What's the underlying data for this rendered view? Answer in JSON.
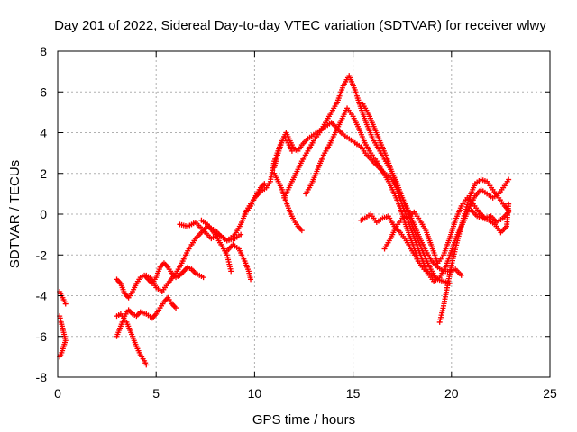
{
  "chart_data": {
    "type": "scatter",
    "title": "Day 201 of 2022, Sidereal Day-to-day VTEC variation (SDTVAR) for receiver wlwy",
    "xlabel": "GPS time / hours",
    "ylabel": "SDTVAR / TECUs",
    "xlim": [
      0,
      25
    ],
    "ylim": [
      -8,
      8
    ],
    "xticks": [
      0,
      5,
      10,
      15,
      20,
      25
    ],
    "yticks": [
      -8,
      -6,
      -4,
      -2,
      0,
      2,
      4,
      6,
      8
    ],
    "grid": true,
    "marker": "plus",
    "color": "#ff0000",
    "series": [
      {
        "x": [
          0.1,
          0.2,
          0.3,
          0.4
        ],
        "y": [
          -3.8,
          -4.0,
          -4.2,
          -4.4
        ]
      },
      {
        "x": [
          0.1,
          0.2,
          0.3,
          0.4,
          0.3,
          0.2,
          0.1
        ],
        "y": [
          -5.0,
          -5.4,
          -5.8,
          -6.2,
          -6.5,
          -6.8,
          -7.0
        ]
      },
      {
        "x": [
          3.0,
          3.2,
          3.5,
          3.8,
          4.0,
          4.2,
          4.4,
          4.5
        ],
        "y": [
          -5.0,
          -4.9,
          -5.3,
          -6.0,
          -6.5,
          -6.9,
          -7.2,
          -7.4
        ]
      },
      {
        "x": [
          3.0,
          3.2,
          3.4,
          3.6,
          3.8,
          4.0,
          4.2,
          4.5,
          4.8,
          5.0,
          5.2,
          5.4,
          5.6,
          5.8,
          6.0
        ],
        "y": [
          -6.0,
          -5.5,
          -5.0,
          -4.7,
          -4.9,
          -5.0,
          -4.8,
          -4.9,
          -5.1,
          -4.9,
          -4.6,
          -4.3,
          -4.1,
          -4.4,
          -4.6
        ]
      },
      {
        "x": [
          3.0,
          3.2,
          3.4,
          3.6,
          3.8,
          4.0,
          4.2,
          4.4,
          4.6,
          4.8,
          5.0,
          5.2,
          5.4,
          5.6,
          5.8,
          6.0,
          6.2,
          6.4,
          6.6,
          6.8,
          7.0,
          7.2,
          7.4
        ],
        "y": [
          -3.2,
          -3.4,
          -3.9,
          -4.1,
          -3.8,
          -3.4,
          -3.1,
          -3.0,
          -3.2,
          -3.4,
          -3.1,
          -2.6,
          -2.4,
          -2.6,
          -2.9,
          -3.1,
          -3.0,
          -2.8,
          -2.6,
          -2.7,
          -2.9,
          -3.0,
          -3.1
        ]
      },
      {
        "x": [
          4.5,
          4.8,
          5.0,
          5.3,
          5.6,
          6.0,
          6.3,
          6.6,
          7.0,
          7.3,
          7.6,
          8.0,
          8.3,
          8.6,
          9.0,
          9.3,
          9.6,
          10.0,
          10.3,
          10.5
        ],
        "y": [
          -3.0,
          -3.2,
          -3.6,
          -3.8,
          -3.4,
          -2.9,
          -2.4,
          -1.8,
          -1.2,
          -0.9,
          -0.6,
          -0.8,
          -1.1,
          -1.3,
          -1.0,
          -0.5,
          0.2,
          0.8,
          1.3,
          1.5
        ]
      },
      {
        "x": [
          6.2,
          6.6,
          7.0,
          7.4,
          7.8,
          8.2,
          8.6,
          9.0,
          9.3
        ],
        "y": [
          -0.5,
          -0.6,
          -0.4,
          -0.8,
          -1.2,
          -1.0,
          -1.3,
          -1.2,
          -1.0
        ]
      },
      {
        "x": [
          7.3,
          7.6,
          8.0,
          8.3,
          8.6,
          8.8
        ],
        "y": [
          -0.3,
          -0.5,
          -1.0,
          -1.5,
          -2.0,
          -2.8
        ]
      },
      {
        "x": [
          8.6,
          8.9,
          9.2,
          9.5,
          9.7,
          9.8
        ],
        "y": [
          -1.8,
          -1.5,
          -1.7,
          -2.3,
          -2.8,
          -3.2
        ]
      },
      {
        "x": [
          9.5,
          9.8,
          10.0,
          10.3,
          10.6,
          10.8,
          11.0,
          11.3,
          11.5,
          11.7,
          11.9
        ],
        "y": [
          0.0,
          0.4,
          0.8,
          1.1,
          1.3,
          1.6,
          2.6,
          3.4,
          3.8,
          3.5,
          3.1
        ]
      },
      {
        "x": [
          11.0,
          11.2,
          11.4,
          11.6,
          11.8,
          12.0,
          12.2,
          12.4
        ],
        "y": [
          2.0,
          1.6,
          1.2,
          0.6,
          0.1,
          -0.3,
          -0.6,
          -0.8
        ]
      },
      {
        "x": [
          11.0,
          11.2,
          11.4,
          11.6,
          11.8,
          12.0,
          12.2,
          12.4,
          12.7,
          13.0,
          13.3,
          13.6,
          13.9,
          14.2,
          14.5,
          14.8,
          15.1,
          15.4,
          15.7,
          16.0,
          16.3,
          16.6,
          16.9,
          17.2,
          17.5,
          17.8,
          18.1,
          18.4,
          18.7,
          19.0,
          19.3,
          19.6,
          19.9,
          20.2,
          20.5
        ],
        "y": [
          2.3,
          3.0,
          3.6,
          4.0,
          3.6,
          3.2,
          3.1,
          3.4,
          3.7,
          3.9,
          4.1,
          4.3,
          4.5,
          4.2,
          3.9,
          3.7,
          3.5,
          3.3,
          2.9,
          2.6,
          2.3,
          2.0,
          1.8,
          1.4,
          0.8,
          0.2,
          -0.5,
          -1.2,
          -1.8,
          -2.3,
          -2.6,
          -2.8,
          -2.8,
          -2.7,
          -3.0
        ]
      },
      {
        "x": [
          11.5,
          11.8,
          12.1,
          12.4,
          12.7,
          13.0,
          13.3,
          13.6,
          13.9,
          14.2,
          14.5,
          14.8,
          15.1,
          15.4,
          15.7,
          16.0,
          16.3,
          16.6,
          16.9,
          17.2,
          17.5,
          17.8,
          18.1,
          18.4,
          18.7,
          19.0,
          19.3,
          19.6,
          19.9
        ],
        "y": [
          0.8,
          1.4,
          2.0,
          2.6,
          3.1,
          3.6,
          4.0,
          4.5,
          5.0,
          5.5,
          6.3,
          6.8,
          6.1,
          5.2,
          4.4,
          3.7,
          3.2,
          2.7,
          2.2,
          1.6,
          0.8,
          0.0,
          -0.8,
          -1.5,
          -2.2,
          -2.8,
          -3.2,
          -3.3,
          -3.4
        ]
      },
      {
        "x": [
          12.6,
          12.9,
          13.2,
          13.5,
          13.8,
          14.1,
          14.4,
          14.7,
          15.0,
          15.3,
          15.6,
          15.9,
          16.2,
          16.5,
          16.8,
          17.1,
          17.4,
          17.7,
          18.0,
          18.3
        ],
        "y": [
          1.0,
          1.5,
          2.2,
          2.9,
          3.4,
          4.0,
          4.6,
          5.2,
          4.8,
          4.2,
          3.5,
          3.0,
          2.6,
          2.1,
          1.6,
          1.0,
          0.3,
          -0.6,
          -1.4,
          -2.2
        ]
      },
      {
        "x": [
          15.5,
          15.8,
          16.1,
          16.4,
          16.7,
          17.0,
          17.3,
          17.6,
          17.9,
          18.2,
          18.5,
          18.8,
          19.1,
          19.4,
          19.7,
          20.0,
          20.3,
          20.6,
          20.9,
          21.2,
          21.5,
          21.8,
          22.1,
          22.4,
          22.7,
          22.9
        ],
        "y": [
          5.4,
          4.9,
          4.2,
          3.5,
          2.8,
          2.0,
          1.0,
          0.2,
          -0.6,
          -1.4,
          -2.2,
          -2.9,
          -3.3,
          -3.1,
          -2.6,
          -1.8,
          -1.0,
          -0.4,
          0.3,
          0.9,
          1.2,
          1.0,
          0.8,
          1.0,
          1.4,
          1.7
        ]
      },
      {
        "x": [
          15.4,
          15.6,
          15.9,
          16.2,
          16.5,
          16.8,
          17.1,
          17.4,
          17.7,
          18.0,
          18.3,
          18.6,
          18.9,
          19.2
        ],
        "y": [
          -0.3,
          -0.2,
          0.0,
          -0.4,
          -0.2,
          -0.1,
          -0.6,
          -0.9,
          -1.3,
          -1.8,
          -2.3,
          -2.7,
          -2.9,
          -3.1
        ]
      },
      {
        "x": [
          16.6,
          16.9,
          17.2,
          17.5,
          17.8,
          18.1,
          18.4,
          18.7,
          19.0,
          19.3,
          19.6,
          19.9,
          20.2,
          20.5,
          20.8,
          21.1,
          21.4,
          21.7,
          22.0,
          22.3,
          22.6,
          22.9
        ],
        "y": [
          -1.7,
          -1.2,
          -0.6,
          -0.2,
          -0.1,
          0.1,
          -0.3,
          -0.8,
          -1.6,
          -2.4,
          -2.0,
          -1.2,
          -0.3,
          0.4,
          0.8,
          0.5,
          0.1,
          -0.2,
          -0.1,
          -0.4,
          -0.2,
          0.1
        ]
      },
      {
        "x": [
          19.4,
          19.6,
          19.8,
          20.0,
          20.3,
          20.6,
          20.9,
          21.2,
          21.5,
          21.8,
          22.1,
          22.4,
          22.7,
          22.9
        ],
        "y": [
          -5.3,
          -4.5,
          -3.5,
          -2.5,
          -1.3,
          -0.2,
          0.8,
          1.5,
          1.7,
          1.6,
          1.2,
          0.8,
          0.4,
          0.2
        ]
      },
      {
        "x": [
          21.0,
          21.3,
          21.6,
          21.9,
          22.2,
          22.5,
          22.8,
          22.9
        ],
        "y": [
          0.2,
          -0.1,
          -0.2,
          -0.3,
          -0.5,
          -0.9,
          -0.6,
          0.5
        ]
      }
    ]
  }
}
